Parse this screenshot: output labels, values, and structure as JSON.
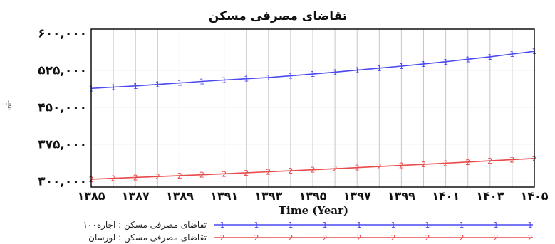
{
  "chart_data": {
    "type": "line",
    "title": "تقاضای مصرفی مسکن",
    "xlabel": "Time (Year)",
    "ylabel": "unit",
    "x": [
      1385,
      1386,
      1387,
      1388,
      1389,
      1390,
      1391,
      1392,
      1393,
      1394,
      1395,
      1396,
      1397,
      1398,
      1399,
      1400,
      1401,
      1402,
      1403,
      1404,
      1405
    ],
    "x_tick_labels": [
      "۱۳۸۵",
      "۱۳۸۷",
      "۱۳۸۹",
      "۱۳۹۱",
      "۱۳۹۳",
      "۱۳۹۵",
      "۱۳۹۷",
      "۱۳۹۹",
      "۱۴۰۱",
      "۱۴۰۳",
      "۱۴۰۵"
    ],
    "x_ticks": [
      1385,
      1387,
      1389,
      1391,
      1393,
      1395,
      1397,
      1399,
      1401,
      1403,
      1405
    ],
    "y_tick_labels": [
      "۶۰۰,۰۰۰",
      "۵۲۵,۰۰۰",
      "۴۵۰,۰۰۰",
      "۳۷۵,۰۰۰",
      "۳۰۰,۰۰۰"
    ],
    "y_ticks": [
      600000,
      525000,
      450000,
      375000,
      300000
    ],
    "xlim": [
      1385,
      1405
    ],
    "ylim": [
      288000,
      608000
    ],
    "grid": true,
    "legend_position": "bottom",
    "series": [
      {
        "name": "تقاضای مصرفی مسکن : اجاره۱۰۰",
        "color": "#4a4af0",
        "marker": "1",
        "values": [
          488000,
          490500,
          493000,
          496000,
          499000,
          502000,
          505000,
          507500,
          510000,
          513500,
          517000,
          521000,
          525000,
          529000,
          533000,
          537500,
          542000,
          547000,
          552000,
          557500,
          563000
        ]
      },
      {
        "name": "تقاضای مصرفی مسکن : لورسان",
        "color": "#e84a4a",
        "marker": "2",
        "values": [
          304000,
          305800,
          307600,
          309400,
          311200,
          313000,
          315000,
          317000,
          319000,
          321000,
          323000,
          325200,
          327400,
          329600,
          331800,
          334000,
          336400,
          338800,
          341200,
          343600,
          346000
        ]
      }
    ]
  }
}
